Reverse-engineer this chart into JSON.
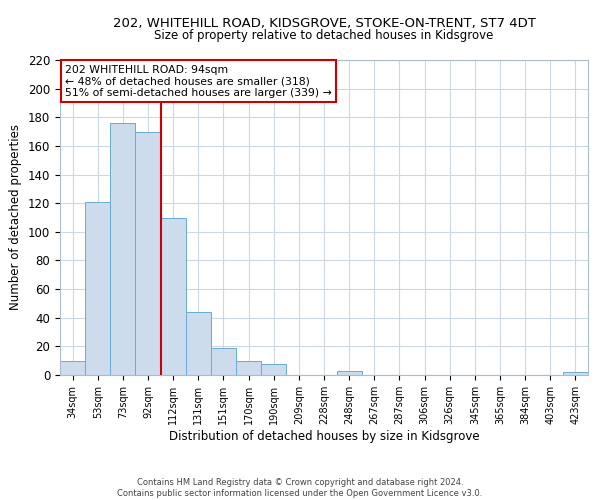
{
  "title": "202, WHITEHILL ROAD, KIDSGROVE, STOKE-ON-TRENT, ST7 4DT",
  "subtitle": "Size of property relative to detached houses in Kidsgrove",
  "xlabel": "Distribution of detached houses by size in Kidsgrove",
  "ylabel": "Number of detached properties",
  "bar_labels": [
    "34sqm",
    "53sqm",
    "73sqm",
    "92sqm",
    "112sqm",
    "131sqm",
    "151sqm",
    "170sqm",
    "190sqm",
    "209sqm",
    "228sqm",
    "248sqm",
    "267sqm",
    "287sqm",
    "306sqm",
    "326sqm",
    "345sqm",
    "365sqm",
    "384sqm",
    "403sqm",
    "423sqm"
  ],
  "bar_values": [
    10,
    121,
    176,
    170,
    110,
    44,
    19,
    10,
    8,
    0,
    0,
    3,
    0,
    0,
    0,
    0,
    0,
    0,
    0,
    0,
    2
  ],
  "bar_color": "#ccdcec",
  "bar_edge_color": "#6aaad4",
  "vline_color": "#cc0000",
  "vline_pos": 3.5,
  "ylim": [
    0,
    220
  ],
  "yticks": [
    0,
    20,
    40,
    60,
    80,
    100,
    120,
    140,
    160,
    180,
    200,
    220
  ],
  "annotation_title": "202 WHITEHILL ROAD: 94sqm",
  "annotation_line1": "← 48% of detached houses are smaller (318)",
  "annotation_line2": "51% of semi-detached houses are larger (339) →",
  "annotation_box_color": "#ffffff",
  "annotation_box_edge": "#cc0000",
  "footer_line1": "Contains HM Land Registry data © Crown copyright and database right 2024.",
  "footer_line2": "Contains public sector information licensed under the Open Government Licence v3.0.",
  "background_color": "#ffffff",
  "grid_color": "#ccd8e4"
}
